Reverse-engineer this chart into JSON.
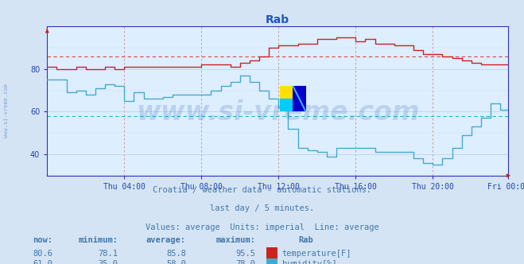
{
  "title": "Rab",
  "title_color": "#2255bb",
  "bg_color": "#d4e4f4",
  "plot_bg_color": "#ddeeff",
  "xlabel_ticks": [
    "Thu 04:00",
    "Thu 08:00",
    "Thu 12:00",
    "Thu 16:00",
    "Thu 20:00",
    "Fri 00:00"
  ],
  "ylabel_range": [
    30,
    100
  ],
  "ylabel_ticks": [
    40,
    60,
    80
  ],
  "temp_avg": 85.8,
  "hum_avg": 58.0,
  "temp_color": "#cc2222",
  "hum_color": "#44aacc",
  "avg_line_temp_color": "#dd4444",
  "avg_line_hum_color": "#22bbcc",
  "vgrid_color": "#cc8888",
  "hgrid_color": "#bbccdd",
  "watermark_color": "#2255aa",
  "watermark_alpha": 0.18,
  "watermark_text": "www.si-vreme.com",
  "watermark_fontsize": 24,
  "subtitle1": "Croatia / weather data - automatic stations.",
  "subtitle2": "last day / 5 minutes.",
  "subtitle3": "Values: average  Units: imperial  Line: average",
  "subtitle_color": "#4477aa",
  "subtitle_fontsize": 7.5,
  "n_points": 288,
  "temp_now": 80.6,
  "temp_min": 78.1,
  "temp_avg_val": 85.8,
  "temp_max": 95.5,
  "hum_now": 61.0,
  "hum_min": 35.0,
  "hum_avg_val": 58.0,
  "hum_max": 78.0,
  "ytick_label_color": "#2244aa",
  "axis_label_color": "#2244aa",
  "spine_color": "#3333bb",
  "yside_label": "www.si-vreme.com",
  "yside_color": "#6688bb",
  "yside_alpha": 0.7
}
